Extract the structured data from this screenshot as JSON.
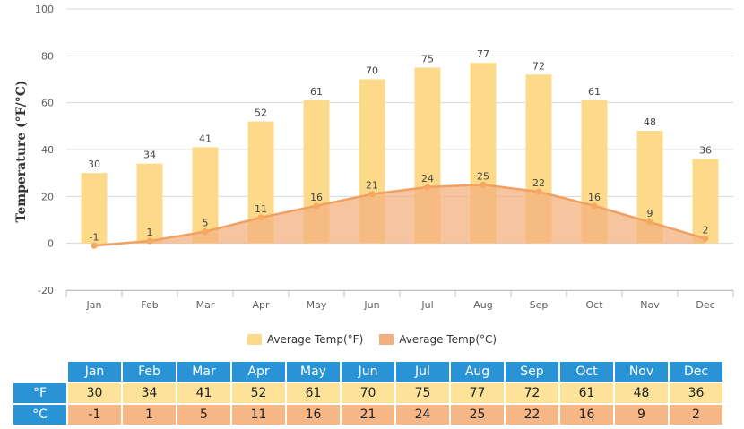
{
  "chart_data": {
    "type": "bar",
    "ylabel": "Temperature (°F/°C)",
    "ylim": [
      -20,
      100
    ],
    "yticks": [
      -20,
      0,
      20,
      40,
      60,
      80,
      100
    ],
    "categories": [
      "Jan",
      "Feb",
      "Mar",
      "Apr",
      "May",
      "Jun",
      "Jul",
      "Aug",
      "Sep",
      "Oct",
      "Nov",
      "Dec"
    ],
    "series": [
      {
        "name": "Average Temp(°F)",
        "type": "bar",
        "values": [
          30,
          34,
          41,
          52,
          61,
          70,
          75,
          77,
          72,
          61,
          48,
          36
        ]
      },
      {
        "name": "Average Temp(°C)",
        "type": "area",
        "values": [
          -1,
          1,
          5,
          11,
          16,
          21,
          24,
          25,
          22,
          16,
          9,
          2
        ]
      }
    ],
    "legend_position": "bottom",
    "grid": true
  },
  "colors": {
    "bar_f": "#fdd98a",
    "area_fill": "#f3b07d",
    "area_line": "#f0a060",
    "point": "#f4a860",
    "table_header": "#2a93d5",
    "row_f": "#fde39a",
    "row_c": "#f6b787"
  },
  "table": {
    "row_labels": {
      "f": "°F",
      "c": "°C"
    }
  }
}
